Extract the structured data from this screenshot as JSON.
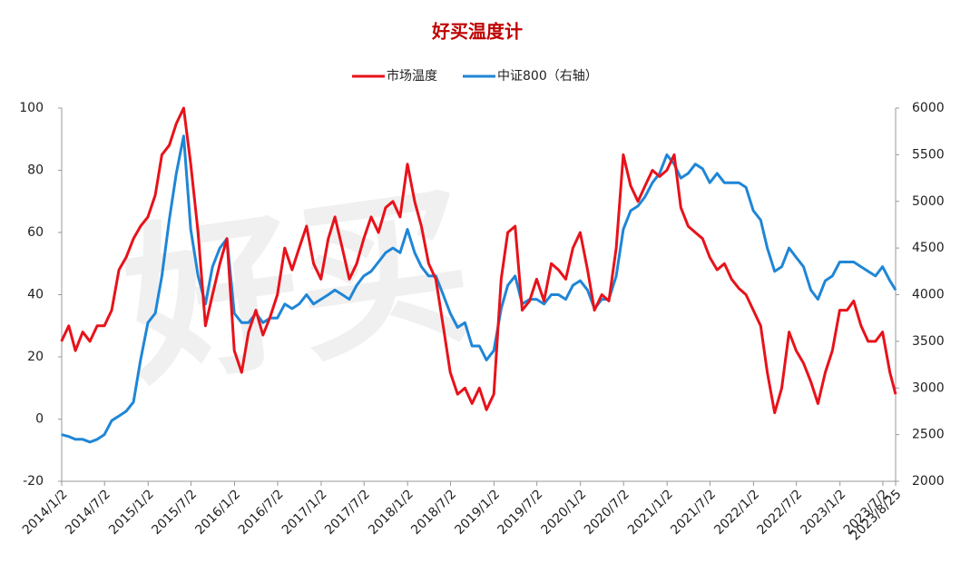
{
  "chart_data": {
    "type": "line",
    "title": "好买温度计",
    "watermark": "好买",
    "x": [
      "2014/1",
      "2014/2",
      "2014/3",
      "2014/4",
      "2014/5",
      "2014/6",
      "2014/7",
      "2014/8",
      "2014/9",
      "2014/10",
      "2014/11",
      "2014/12",
      "2015/1",
      "2015/2",
      "2015/3",
      "2015/4",
      "2015/5",
      "2015/6",
      "2015/7",
      "2015/8",
      "2015/9",
      "2015/10",
      "2015/11",
      "2015/12",
      "2016/1",
      "2016/2",
      "2016/3",
      "2016/4",
      "2016/5",
      "2016/6",
      "2016/7",
      "2016/8",
      "2016/9",
      "2016/10",
      "2016/11",
      "2016/12",
      "2017/1",
      "2017/2",
      "2017/3",
      "2017/4",
      "2017/5",
      "2017/6",
      "2017/7",
      "2017/8",
      "2017/9",
      "2017/10",
      "2017/11",
      "2017/12",
      "2018/1",
      "2018/2",
      "2018/3",
      "2018/4",
      "2018/5",
      "2018/6",
      "2018/7",
      "2018/8",
      "2018/9",
      "2018/10",
      "2018/11",
      "2018/12",
      "2019/1",
      "2019/2",
      "2019/3",
      "2019/4",
      "2019/5",
      "2019/6",
      "2019/7",
      "2019/8",
      "2019/9",
      "2019/10",
      "2019/11",
      "2019/12",
      "2020/1",
      "2020/2",
      "2020/3",
      "2020/4",
      "2020/5",
      "2020/6",
      "2020/7",
      "2020/8",
      "2020/9",
      "2020/10",
      "2020/11",
      "2020/12",
      "2021/1",
      "2021/2",
      "2021/3",
      "2021/4",
      "2021/5",
      "2021/6",
      "2021/7",
      "2021/8",
      "2021/9",
      "2021/10",
      "2021/11",
      "2021/12",
      "2022/1",
      "2022/2",
      "2022/3",
      "2022/4",
      "2022/5",
      "2022/6",
      "2022/7",
      "2022/8",
      "2022/9",
      "2022/10",
      "2022/11",
      "2022/12",
      "2023/1",
      "2023/2",
      "2023/3",
      "2023/4",
      "2023/5",
      "2023/6",
      "2023/7",
      "2023/8",
      "2023/8/25"
    ],
    "series": [
      {
        "name": "市场温度",
        "color": "#e8121a",
        "values": [
          25,
          30,
          22,
          28,
          25,
          30,
          30,
          35,
          48,
          52,
          58,
          62,
          65,
          72,
          85,
          88,
          95,
          100,
          82,
          60,
          30,
          40,
          50,
          58,
          22,
          15,
          28,
          35,
          27,
          33,
          40,
          55,
          48,
          55,
          62,
          50,
          45,
          58,
          65,
          55,
          45,
          50,
          58,
          65,
          60,
          68,
          70,
          65,
          82,
          70,
          62,
          50,
          45,
          30,
          15,
          8,
          10,
          5,
          10,
          3,
          8,
          45,
          60,
          62,
          35,
          38,
          45,
          38,
          50,
          48,
          45,
          55,
          60,
          48,
          35,
          40,
          38,
          55,
          85,
          75,
          70,
          75,
          80,
          78,
          80,
          85,
          68,
          62,
          60,
          58,
          52,
          48,
          50,
          45,
          42,
          40,
          35,
          30,
          15,
          2,
          10,
          28,
          22,
          18,
          12,
          5,
          15,
          22,
          35,
          35,
          38,
          30,
          25,
          25,
          28,
          15,
          8
        ]
      },
      {
        "name": "中证800（右轴）",
        "color": "#1f86d6",
        "axis": "y2",
        "values": [
          2500,
          2480,
          2450,
          2450,
          2420,
          2450,
          2500,
          2650,
          2700,
          2750,
          2850,
          3300,
          3700,
          3800,
          4200,
          4800,
          5300,
          5700,
          4700,
          4200,
          3900,
          4300,
          4500,
          4600,
          3800,
          3700,
          3700,
          3800,
          3700,
          3750,
          3750,
          3900,
          3850,
          3900,
          4000,
          3900,
          3950,
          4000,
          4050,
          4000,
          3950,
          4100,
          4200,
          4250,
          4350,
          4450,
          4500,
          4450,
          4700,
          4450,
          4300,
          4200,
          4200,
          4000,
          3800,
          3650,
          3700,
          3450,
          3450,
          3300,
          3400,
          3850,
          4100,
          4200,
          3900,
          3950,
          3950,
          3900,
          4000,
          4000,
          3950,
          4100,
          4150,
          4050,
          3850,
          3950,
          3950,
          4200,
          4700,
          4900,
          4950,
          5050,
          5200,
          5300,
          5500,
          5400,
          5250,
          5300,
          5400,
          5350,
          5200,
          5300,
          5200,
          5200,
          5200,
          5150,
          4900,
          4800,
          4500,
          4250,
          4300,
          4500,
          4400,
          4300,
          4050,
          3950,
          4150,
          4200,
          4350,
          4350,
          4350,
          4300,
          4250,
          4200,
          4300,
          4150,
          4050
        ]
      }
    ],
    "xlim": [
      "2014/1/2",
      "2023/8/25"
    ],
    "xticks": [
      "2014/1/2",
      "2014/7/2",
      "2015/1/2",
      "2015/7/2",
      "2016/1/2",
      "2016/7/2",
      "2017/1/2",
      "2017/7/2",
      "2018/1/2",
      "2018/7/2",
      "2019/1/2",
      "2019/7/2",
      "2020/1/2",
      "2020/7/2",
      "2021/1/2",
      "2021/7/2",
      "2022/1/2",
      "2022/7/2",
      "2023/1/2",
      "2023/7/2",
      "2023/8/25"
    ],
    "ylim": [
      -20,
      100
    ],
    "yticks": [
      -20,
      0,
      20,
      40,
      60,
      80,
      100
    ],
    "y2lim": [
      2000,
      6000
    ],
    "y2ticks": [
      2000,
      2500,
      3000,
      3500,
      4000,
      4500,
      5000,
      5500,
      6000
    ],
    "grid": false
  }
}
